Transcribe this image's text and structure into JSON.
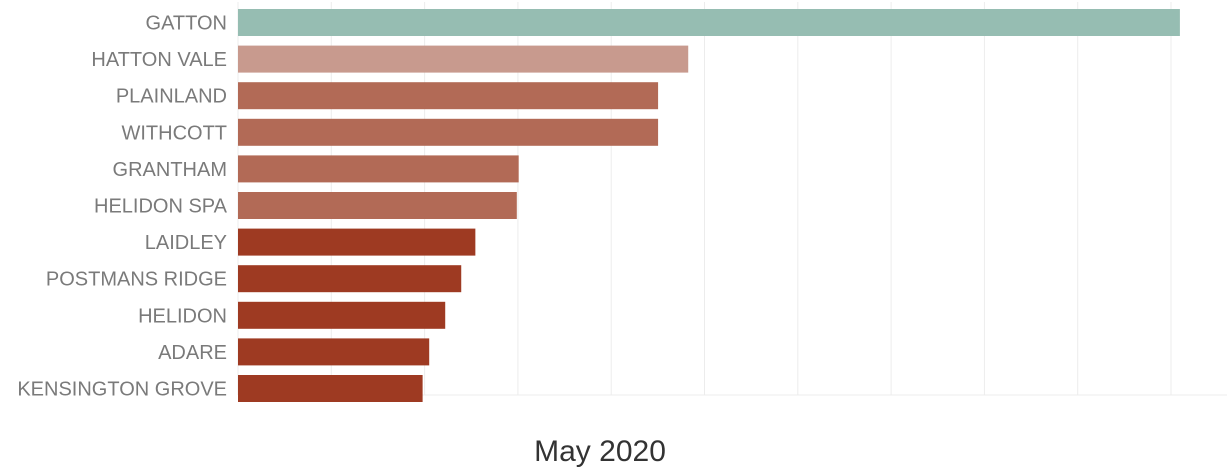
{
  "chart_data": {
    "type": "bar",
    "orientation": "horizontal",
    "categories": [
      "GATTON",
      "HATTON VALE",
      "PLAINLAND",
      "WITHCOTT",
      "GRANTHAM",
      "HELIDON SPA",
      "LAIDLEY",
      "POSTMANS RIDGE",
      "HELIDON",
      "ADARE",
      "KENSINGTON GROVE"
    ],
    "values": [
      1.0,
      0.478,
      0.446,
      0.446,
      0.298,
      0.296,
      0.252,
      0.237,
      0.22,
      0.203,
      0.196
    ],
    "colors": [
      "#96bdb2",
      "#c89a8e",
      "#b26a56",
      "#b26a56",
      "#b26a56",
      "#b26a56",
      "#9e3a22",
      "#9e3a22",
      "#9e3a22",
      "#9e3a22",
      "#9e3a22"
    ],
    "title": "",
    "xlabel": "May 2020",
    "ylabel": "",
    "xlim": [
      0,
      1.05
    ],
    "grid": true,
    "gridlines": 10
  }
}
